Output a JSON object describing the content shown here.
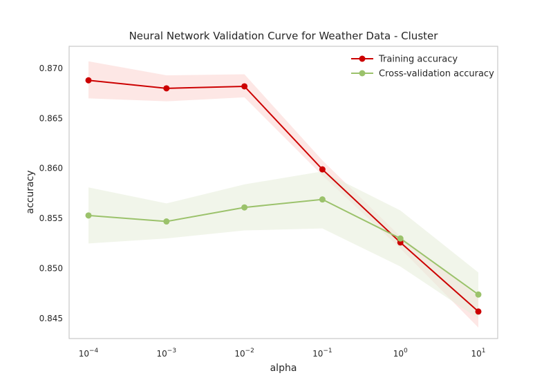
{
  "chart_data": {
    "type": "line",
    "title": "Neural Network Validation Curve for Weather Data - Cluster",
    "xlabel": "alpha",
    "ylabel": "accuracy",
    "x_scale": "log",
    "x": [
      0.0001,
      0.001,
      0.01,
      0.1,
      1,
      10
    ],
    "x_ticks": [
      {
        "base": "10",
        "exp": "−4"
      },
      {
        "base": "10",
        "exp": "−3"
      },
      {
        "base": "10",
        "exp": "−2"
      },
      {
        "base": "10",
        "exp": "−1"
      },
      {
        "base": "10",
        "exp": "0"
      },
      {
        "base": "10",
        "exp": "1"
      }
    ],
    "y_ticks": [
      "0.845",
      "0.850",
      "0.855",
      "0.860",
      "0.865",
      "0.870"
    ],
    "ylim": [
      0.843,
      0.8722
    ],
    "grid": false,
    "legend_position": "top-right",
    "series": [
      {
        "name": "Training accuracy",
        "color": "#cc0000",
        "band_color": "#fbd7d3",
        "values": [
          0.8688,
          0.868,
          0.8682,
          0.8599,
          0.8526,
          0.8457
        ],
        "lower": [
          0.867,
          0.8667,
          0.8671,
          0.8593,
          0.852,
          0.8441
        ],
        "upper": [
          0.8707,
          0.8693,
          0.8694,
          0.8608,
          0.8532,
          0.8472
        ]
      },
      {
        "name": "Cross-validation accuracy",
        "color": "#9bc26b",
        "band_color": "#e8efdc",
        "values": [
          0.8553,
          0.8547,
          0.8561,
          0.8569,
          0.853,
          0.8474
        ],
        "lower": [
          0.8525,
          0.853,
          0.8538,
          0.854,
          0.8502,
          0.845
        ],
        "upper": [
          0.8581,
          0.8565,
          0.8584,
          0.8597,
          0.8558,
          0.8496
        ]
      }
    ]
  }
}
